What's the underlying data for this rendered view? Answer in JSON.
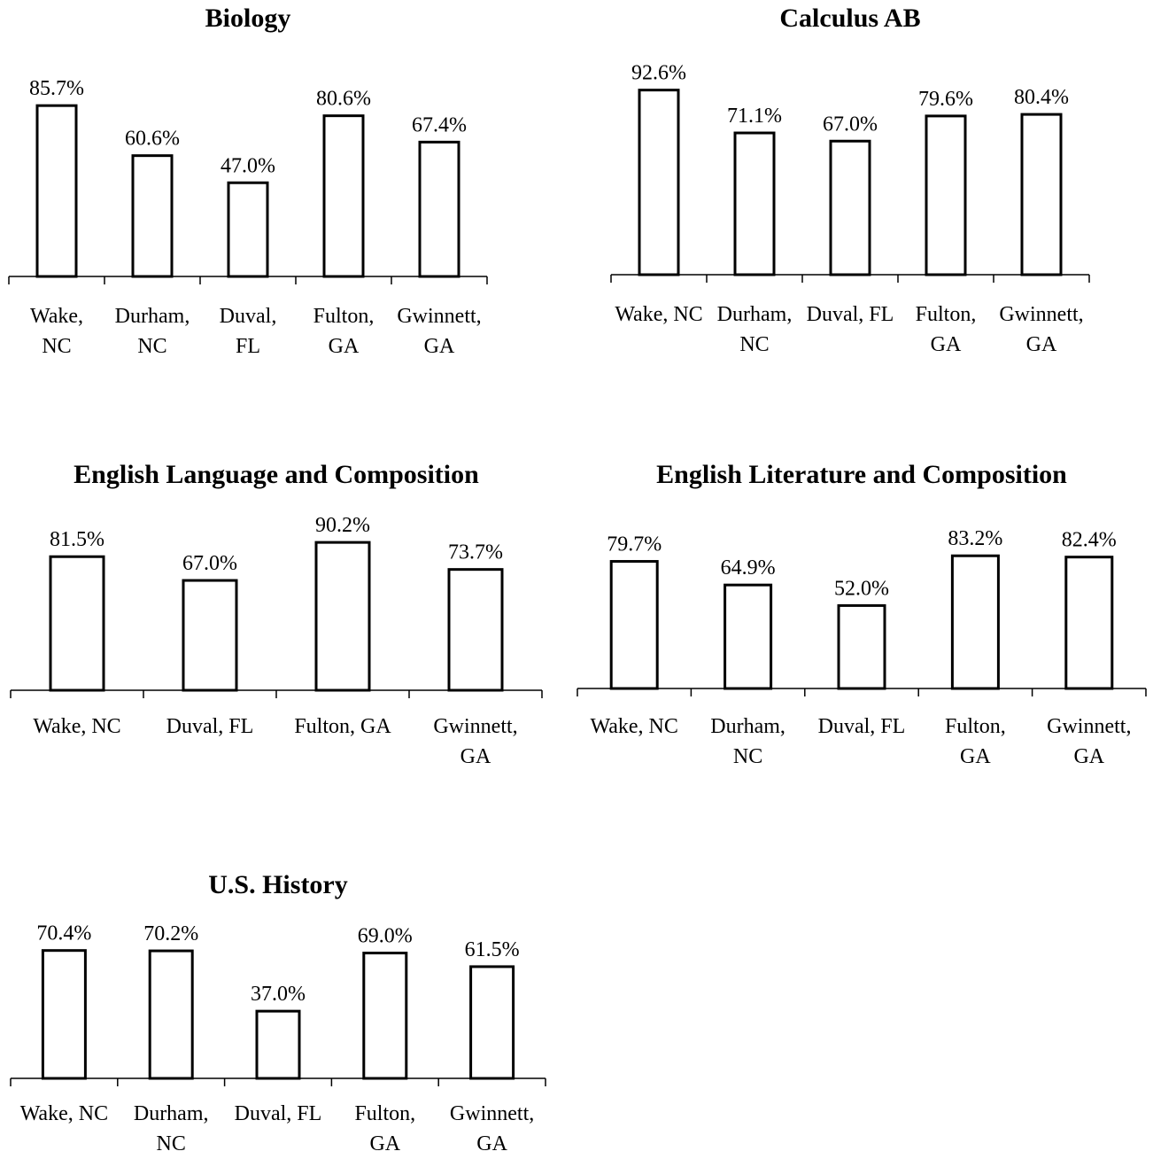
{
  "chart_data": [
    {
      "type": "bar",
      "title": "Biology",
      "categories": [
        "Wake,\nNC",
        "Durham,\nNC",
        "Duval,\nFL",
        "Fulton,\nGA",
        "Gwinnett,\nGA"
      ],
      "values": [
        85.7,
        60.6,
        47.0,
        80.6,
        67.4
      ],
      "value_labels": [
        "85.7%",
        "60.6%",
        "47.0%",
        "80.6%",
        "67.4%"
      ],
      "ylim": [
        0,
        100
      ],
      "grid": false,
      "legend": "none"
    },
    {
      "type": "bar",
      "title": "Calculus AB",
      "categories": [
        "Wake, NC",
        "Durham,\nNC",
        "Duval, FL",
        "Fulton,\nGA",
        "Gwinnett,\nGA"
      ],
      "values": [
        92.6,
        71.1,
        67.0,
        79.6,
        80.4
      ],
      "value_labels": [
        "92.6%",
        "71.1%",
        "67.0%",
        "79.6%",
        "80.4%"
      ],
      "ylim": [
        0,
        100
      ],
      "grid": false,
      "legend": "none"
    },
    {
      "type": "bar",
      "title": "English Language and Composition",
      "categories": [
        "Wake, NC",
        "Duval, FL",
        "Fulton, GA",
        "Gwinnett,\nGA"
      ],
      "values": [
        81.5,
        67.0,
        90.2,
        73.7
      ],
      "value_labels": [
        "81.5%",
        "67.0%",
        "90.2%",
        "73.7%"
      ],
      "ylim": [
        0,
        100
      ],
      "grid": false,
      "legend": "none"
    },
    {
      "type": "bar",
      "title": "English Literature and Composition",
      "categories": [
        "Wake, NC",
        "Durham,\nNC",
        "Duval, FL",
        "Fulton,\nGA",
        "Gwinnett,\nGA"
      ],
      "values": [
        79.7,
        64.9,
        52.0,
        83.2,
        82.4
      ],
      "value_labels": [
        "79.7%",
        "64.9%",
        "52.0%",
        "83.2%",
        "82.4%"
      ],
      "ylim": [
        0,
        100
      ],
      "grid": false,
      "legend": "none"
    },
    {
      "type": "bar",
      "title": "U.S. History",
      "categories": [
        "Wake, NC",
        "Durham,\nNC",
        "Duval, FL",
        "Fulton,\nGA",
        "Gwinnett,\nGA"
      ],
      "values": [
        70.4,
        70.2,
        37.0,
        69.0,
        61.5
      ],
      "value_labels": [
        "70.4%",
        "70.2%",
        "37.0%",
        "69.0%",
        "61.5%"
      ],
      "ylim": [
        0,
        100
      ],
      "grid": false,
      "legend": "none"
    }
  ]
}
